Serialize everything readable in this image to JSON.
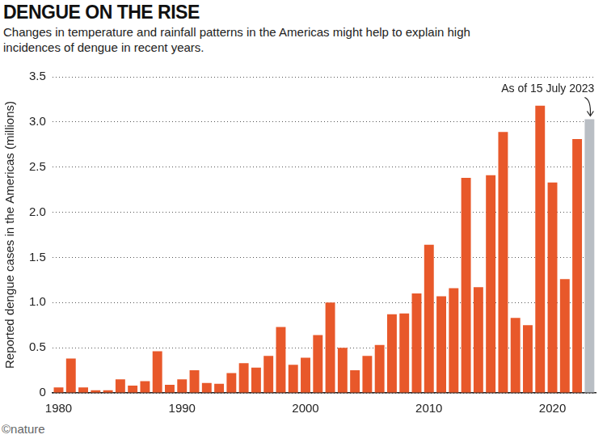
{
  "chart_data": {
    "type": "bar",
    "title": "DENGUE ON THE RISE",
    "subtitle": "Changes in temperature and rainfall patterns in the Americas might help to explain high incidences of dengue in recent years.",
    "y_label": "Reported dengue cases in the Americas (millions)",
    "annotation": "As of 15 July 2023",
    "source": "©nature",
    "categories": [
      "1980",
      null,
      null,
      null,
      null,
      null,
      null,
      null,
      null,
      null,
      "1990",
      null,
      null,
      null,
      null,
      null,
      null,
      null,
      null,
      null,
      "2000",
      null,
      null,
      null,
      null,
      null,
      null,
      null,
      null,
      null,
      "2010",
      null,
      null,
      null,
      null,
      null,
      null,
      null,
      null,
      null,
      "2020",
      null,
      null,
      null
    ],
    "values": [
      0.06,
      0.38,
      0.06,
      0.03,
      0.03,
      0.15,
      0.08,
      0.13,
      0.46,
      0.09,
      0.15,
      0.25,
      0.11,
      0.1,
      0.22,
      0.33,
      0.28,
      0.41,
      0.73,
      0.31,
      0.39,
      0.64,
      1.0,
      0.5,
      0.25,
      0.41,
      0.53,
      0.87,
      0.88,
      1.1,
      1.64,
      1.07,
      1.16,
      2.38,
      1.17,
      2.41,
      2.89,
      0.83,
      0.75,
      3.18,
      2.33,
      1.26,
      2.81,
      3.03
    ],
    "colors": [
      "#e8582a",
      "#e8582a",
      "#e8582a",
      "#e8582a",
      "#e8582a",
      "#e8582a",
      "#e8582a",
      "#e8582a",
      "#e8582a",
      "#e8582a",
      "#e8582a",
      "#e8582a",
      "#e8582a",
      "#e8582a",
      "#e8582a",
      "#e8582a",
      "#e8582a",
      "#e8582a",
      "#e8582a",
      "#e8582a",
      "#e8582a",
      "#e8582a",
      "#e8582a",
      "#e8582a",
      "#e8582a",
      "#e8582a",
      "#e8582a",
      "#e8582a",
      "#e8582a",
      "#e8582a",
      "#e8582a",
      "#e8582a",
      "#e8582a",
      "#e8582a",
      "#e8582a",
      "#e8582a",
      "#e8582a",
      "#e8582a",
      "#e8582a",
      "#e8582a",
      "#e8582a",
      "#e8582a",
      "#e8582a",
      "#b9bec4"
    ],
    "ylim": [
      0,
      3.5
    ],
    "yticks": [
      0,
      0.5,
      {
        "value": 1,
        "label": "1.0"
      },
      1.5,
      {
        "value": 2,
        "label": "2.0"
      },
      2.5,
      {
        "value": 3,
        "label": "3.0"
      },
      3.5
    ],
    "grid": true
  }
}
